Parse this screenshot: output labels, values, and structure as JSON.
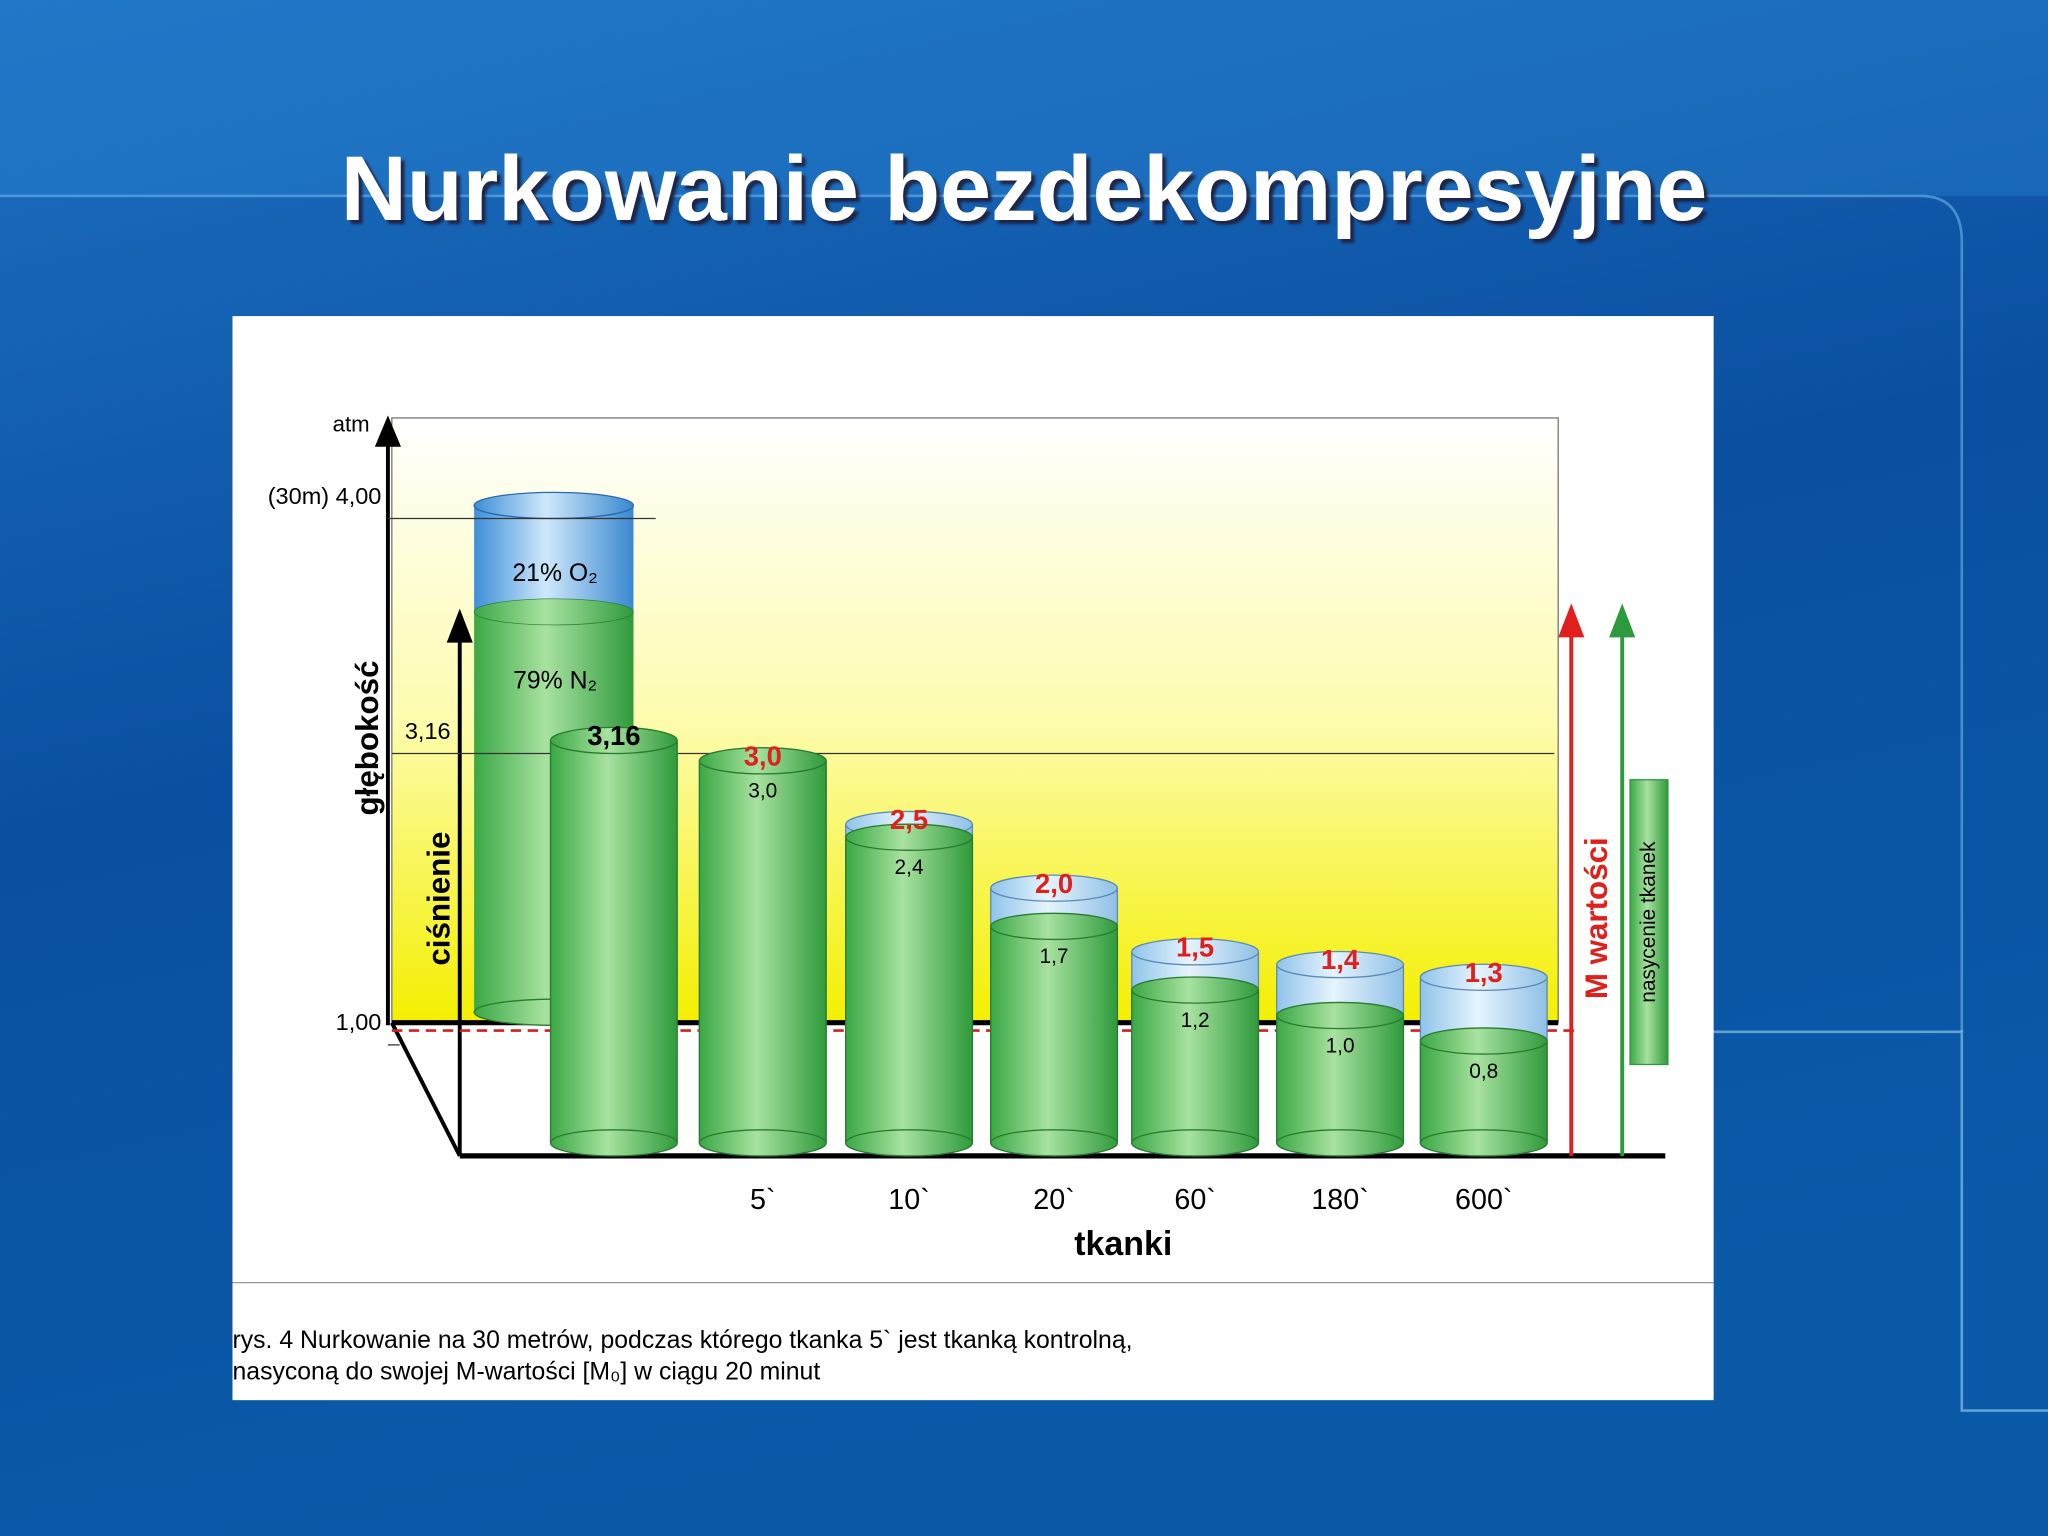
{
  "title": "Nurkowanie bezdekompresyjne",
  "chart_data": {
    "type": "bar",
    "categories": [
      "5`",
      "10`",
      "20`",
      "60`",
      "180`",
      "600`"
    ],
    "series": [
      {
        "name": "M wartości",
        "color": "#e0201c",
        "values": [
          3.0,
          2.5,
          2.0,
          1.5,
          1.4,
          1.3
        ],
        "value_labels": [
          "3,0",
          "2,5",
          "2,0",
          "1,5",
          "1,4",
          "1,3"
        ]
      },
      {
        "name": "nasycenie tkanek",
        "color": "#2e9a3e",
        "values": [
          3.0,
          2.4,
          1.7,
          1.2,
          1.0,
          0.8
        ],
        "value_labels": [
          "3,0",
          "2,4",
          "1,7",
          "1,2",
          "1,0",
          "0,8"
        ]
      }
    ],
    "start": {
      "value": 3.16,
      "label": "3,16"
    },
    "gas": {
      "labels": [
        "21% O₂",
        "79% N₂"
      ],
      "values": [
        21,
        79
      ]
    },
    "ylim": [
      0,
      4
    ],
    "yticks": [
      {
        "value": 1,
        "label": "1,00"
      },
      {
        "value": 3.16,
        "label": "3,16"
      },
      {
        "value": 4,
        "label": "(30m) 4,00"
      }
    ],
    "unit_label": "atm",
    "ylabel": "ciśnienie",
    "depth_label": "głębokość",
    "xlabel": "tkanki",
    "caption": [
      "rys. 4 Nurkowanie na 30 metrów, podczas którego tkanka 5` jest tkanką kontrolną,",
      "nasyconą do swojej M-wartości [M₀] w ciągu 20 minut"
    ]
  }
}
